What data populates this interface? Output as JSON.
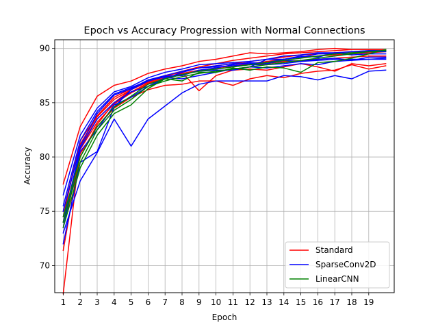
{
  "chart_data": {
    "type": "line",
    "title": "Epoch vs Accuracy Progression with Normal Connections",
    "xlabel": "Epoch",
    "ylabel": "Accuracy",
    "xlim": [
      0.5,
      20.5
    ],
    "ylim": [
      67.5,
      90.8
    ],
    "xticks": [
      1,
      2,
      3,
      4,
      5,
      6,
      7,
      8,
      9,
      10,
      11,
      12,
      13,
      14,
      15,
      16,
      17,
      18,
      19
    ],
    "yticks": [
      70,
      75,
      80,
      85,
      90
    ],
    "grid": true,
    "legend_position": "lower-right",
    "legend": [
      {
        "label": "Standard",
        "color": "#ff0000"
      },
      {
        "label": "SparseConv2D",
        "color": "#0000ff"
      },
      {
        "label": "LinearCNN",
        "color": "#008000"
      }
    ],
    "x": [
      1,
      2,
      3,
      4,
      5,
      6,
      7,
      8,
      9,
      10,
      11,
      12,
      13,
      14,
      15,
      16,
      17,
      18,
      19,
      20
    ],
    "series": [
      {
        "group": "Standard",
        "color": "#ff0000",
        "values": [
          77.5,
          82.8,
          85.6,
          86.6,
          87.0,
          87.7,
          88.1,
          88.4,
          88.8,
          89.0,
          89.3,
          89.6,
          89.5,
          89.6,
          89.7,
          89.9,
          90.0,
          89.9,
          89.9,
          89.9
        ]
      },
      {
        "group": "Standard",
        "color": "#ff0000",
        "values": [
          67.4,
          81.0,
          83.5,
          85.0,
          86.2,
          87.0,
          87.5,
          87.9,
          88.2,
          88.4,
          88.6,
          88.8,
          89.0,
          89.2,
          89.4,
          89.5,
          89.6,
          89.7,
          89.8,
          89.8
        ]
      },
      {
        "group": "Standard",
        "color": "#ff0000",
        "values": [
          71.4,
          80.3,
          82.8,
          84.5,
          85.5,
          86.2,
          86.6,
          86.7,
          87.0,
          87.0,
          86.6,
          87.2,
          87.5,
          87.3,
          87.7,
          87.9,
          88.0,
          88.5,
          88.1,
          88.4
        ]
      },
      {
        "group": "Standard",
        "color": "#ff0000",
        "values": [
          74.5,
          81.5,
          83.8,
          85.5,
          86.3,
          87.0,
          87.5,
          87.8,
          86.1,
          87.5,
          88.0,
          88.1,
          88.0,
          88.3,
          88.6,
          88.3,
          87.9,
          88.6,
          88.4,
          88.6
        ]
      },
      {
        "group": "Standard",
        "color": "#ff0000",
        "values": [
          73.5,
          80.0,
          83.0,
          85.0,
          86.0,
          86.8,
          87.3,
          87.7,
          88.0,
          88.2,
          88.4,
          88.6,
          88.8,
          89.0,
          89.2,
          89.3,
          89.4,
          89.5,
          89.6,
          89.7
        ]
      },
      {
        "group": "Standard",
        "color": "#ff0000",
        "values": [
          75.0,
          81.2,
          83.7,
          85.3,
          86.2,
          86.9,
          87.4,
          87.9,
          88.3,
          88.6,
          88.9,
          89.1,
          89.3,
          89.5,
          89.6,
          89.7,
          89.8,
          89.9,
          89.9,
          89.9
        ]
      },
      {
        "group": "Standard",
        "color": "#ff0000",
        "values": [
          74.0,
          80.7,
          83.2,
          84.9,
          85.9,
          86.7,
          87.2,
          87.6,
          87.9,
          88.1,
          88.3,
          88.5,
          88.6,
          88.8,
          88.9,
          89.0,
          89.1,
          89.2,
          89.3,
          89.3
        ]
      },
      {
        "group": "SparseConv2D",
        "color": "#0000ff",
        "values": [
          73.0,
          77.8,
          80.4,
          83.5,
          81.0,
          83.5,
          84.7,
          85.9,
          86.7,
          87.0,
          87.0,
          87.0,
          87.0,
          87.5,
          87.4,
          87.1,
          87.5,
          87.2,
          87.9,
          88.0
        ]
      },
      {
        "group": "SparseConv2D",
        "color": "#0000ff",
        "values": [
          76.5,
          82.0,
          84.5,
          86.0,
          86.5,
          87.3,
          87.8,
          88.1,
          88.5,
          88.6,
          88.7,
          88.8,
          89.0,
          89.3,
          89.4,
          89.6,
          89.6,
          89.7,
          89.8,
          89.8
        ]
      },
      {
        "group": "SparseConv2D",
        "color": "#0000ff",
        "values": [
          72.0,
          79.5,
          80.5,
          84.6,
          86.2,
          87.0,
          87.4,
          87.6,
          87.9,
          88.0,
          88.0,
          88.3,
          89.0,
          89.0,
          89.3,
          89.2,
          89.6,
          89.4,
          89.5,
          89.5
        ]
      },
      {
        "group": "SparseConv2D",
        "color": "#0000ff",
        "values": [
          75.5,
          81.5,
          84.2,
          85.8,
          86.4,
          87.0,
          87.4,
          87.5,
          88.0,
          88.2,
          88.5,
          88.7,
          88.6,
          88.9,
          88.8,
          89.0,
          89.1,
          88.9,
          89.2,
          89.2
        ]
      },
      {
        "group": "SparseConv2D",
        "color": "#0000ff",
        "values": [
          74.0,
          80.8,
          83.5,
          85.0,
          86.0,
          86.5,
          87.2,
          87.8,
          88.2,
          88.4,
          88.6,
          88.6,
          88.7,
          89.0,
          89.2,
          89.5,
          89.5,
          89.6,
          89.7,
          89.7
        ]
      },
      {
        "group": "SparseConv2D",
        "color": "#0000ff",
        "values": [
          73.5,
          80.5,
          82.5,
          84.8,
          85.5,
          86.5,
          87.3,
          87.2,
          87.5,
          87.8,
          88.1,
          88.3,
          88.2,
          88.4,
          88.6,
          88.5,
          88.8,
          88.9,
          89.0,
          89.1
        ]
      },
      {
        "group": "SparseConv2D",
        "color": "#0000ff",
        "values": [
          75.0,
          81.0,
          84.0,
          85.7,
          86.3,
          87.1,
          87.5,
          87.9,
          88.2,
          88.3,
          88.4,
          88.5,
          88.5,
          88.6,
          88.8,
          88.9,
          89.0,
          89.0,
          89.0,
          89.0
        ]
      },
      {
        "group": "LinearCNN",
        "color": "#008000",
        "values": [
          73.5,
          79.0,
          82.0,
          84.0,
          84.8,
          86.3,
          87.2,
          87.0,
          87.8,
          87.8,
          88.2,
          88.0,
          88.3,
          88.2,
          87.8,
          88.7,
          88.8,
          89.1,
          89.5,
          89.9
        ]
      },
      {
        "group": "LinearCNN",
        "color": "#008000",
        "values": [
          74.0,
          79.5,
          82.5,
          84.3,
          85.3,
          86.5,
          87.0,
          87.4,
          87.7,
          87.9,
          88.1,
          88.3,
          88.5,
          88.7,
          88.9,
          89.1,
          89.3,
          89.5,
          89.7,
          89.8
        ]
      },
      {
        "group": "LinearCNN",
        "color": "#008000",
        "values": [
          74.5,
          80.0,
          82.8,
          84.6,
          85.6,
          86.7,
          87.2,
          87.6,
          87.9,
          88.1,
          88.3,
          88.5,
          88.7,
          88.9,
          89.1,
          89.3,
          89.5,
          89.6,
          89.7,
          89.8
        ]
      }
    ]
  }
}
